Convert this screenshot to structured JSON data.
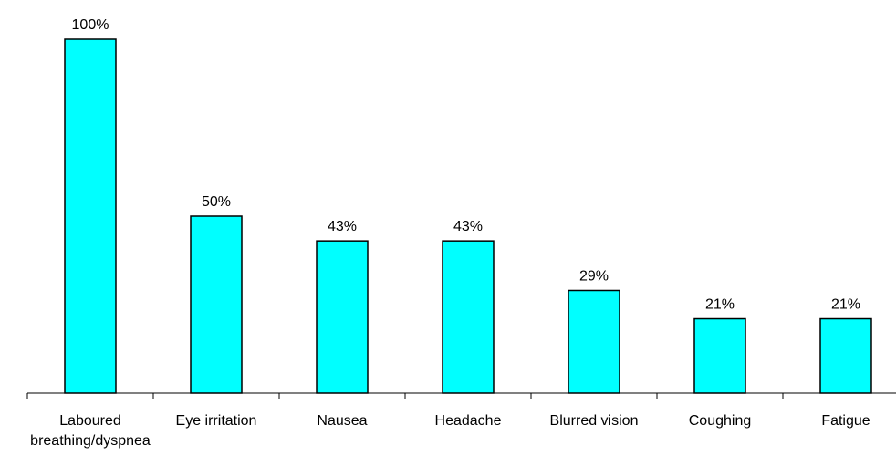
{
  "chart_data": {
    "type": "bar",
    "categories": [
      "Laboured breathing/dyspnea",
      "Eye irritation",
      "Nausea",
      "Headache",
      "Blurred vision",
      "Coughing",
      "Fatigue"
    ],
    "values": [
      100,
      50,
      43,
      43,
      29,
      21,
      21
    ],
    "value_labels": [
      "100%",
      "50%",
      "43%",
      "43%",
      "29%",
      "21%",
      "21%"
    ],
    "color": "#00ffff",
    "ylim": [
      0,
      100
    ]
  }
}
